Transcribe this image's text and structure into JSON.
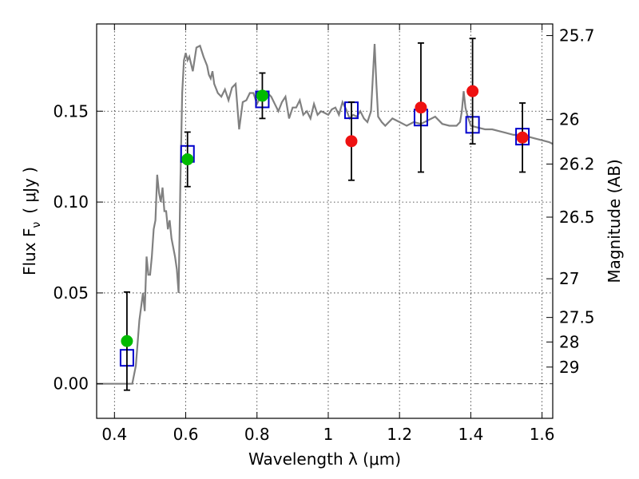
{
  "chart_data": {
    "type": "scatter",
    "xlabel": "Wavelength  λ (μm)",
    "ylabel": "Flux  F",
    "ylabel_sub": "ν",
    "ylabel_unit": "( μJy )",
    "right_ylabel": "Magnitude (AB)",
    "xlim": [
      0.35,
      1.63
    ],
    "ylim": [
      -0.019,
      0.198
    ],
    "x_ticks": [
      0.4,
      0.6,
      0.8,
      1.0,
      1.2,
      1.4,
      1.6
    ],
    "x_tick_labels": [
      "0.4",
      "0.6",
      "0.8",
      "1",
      "1.2",
      "1.4",
      "1.6"
    ],
    "y_ticks": [
      0.0,
      0.05,
      0.1,
      0.15
    ],
    "y_tick_labels": [
      "0.00",
      "0.05",
      "0.10",
      "0.15"
    ],
    "right_ticks": [
      {
        "label": "25.7",
        "flux": 0.1916
      },
      {
        "label": "26",
        "flux": 0.1454
      },
      {
        "label": "26.2",
        "flux": 0.1209
      },
      {
        "label": "26.5",
        "flux": 0.0917
      },
      {
        "label": "27",
        "flux": 0.0578
      },
      {
        "label": "27.5",
        "flux": 0.0365
      },
      {
        "label": "28",
        "flux": 0.023
      },
      {
        "label": "29",
        "flux": 0.0092
      }
    ],
    "grid": true,
    "zero_line": true,
    "colors": {
      "model": "#808080",
      "model_photometry": "#0000cc",
      "optical": "#00bb00",
      "nir": "#ee1111",
      "errorbar": "#000000"
    },
    "model_spectrum": {
      "x": [
        0.35,
        0.38,
        0.4,
        0.42,
        0.44,
        0.45,
        0.46,
        0.47,
        0.48,
        0.485,
        0.49,
        0.495,
        0.5,
        0.505,
        0.51,
        0.515,
        0.52,
        0.525,
        0.53,
        0.535,
        0.54,
        0.545,
        0.55,
        0.555,
        0.56,
        0.565,
        0.57,
        0.575,
        0.58,
        0.585,
        0.59,
        0.595,
        0.6,
        0.605,
        0.61,
        0.62,
        0.63,
        0.64,
        0.65,
        0.66,
        0.665,
        0.67,
        0.675,
        0.68,
        0.69,
        0.7,
        0.71,
        0.72,
        0.73,
        0.74,
        0.75,
        0.76,
        0.77,
        0.78,
        0.79,
        0.8,
        0.81,
        0.82,
        0.83,
        0.84,
        0.85,
        0.86,
        0.87,
        0.88,
        0.89,
        0.9,
        0.91,
        0.92,
        0.93,
        0.94,
        0.95,
        0.96,
        0.97,
        0.98,
        0.99,
        1.0,
        1.01,
        1.02,
        1.03,
        1.04,
        1.05,
        1.06,
        1.07,
        1.08,
        1.09,
        1.1,
        1.11,
        1.12,
        1.125,
        1.13,
        1.135,
        1.14,
        1.15,
        1.16,
        1.18,
        1.2,
        1.22,
        1.24,
        1.26,
        1.28,
        1.3,
        1.32,
        1.34,
        1.36,
        1.37,
        1.375,
        1.38,
        1.385,
        1.39,
        1.4,
        1.42,
        1.44,
        1.46,
        1.48,
        1.5,
        1.52,
        1.54,
        1.56,
        1.58,
        1.6,
        1.62,
        1.63
      ],
      "y": [
        0.0,
        0.0,
        0.0,
        0.0,
        0.0,
        0.0,
        0.01,
        0.035,
        0.05,
        0.04,
        0.07,
        0.06,
        0.06,
        0.07,
        0.085,
        0.09,
        0.115,
        0.105,
        0.1,
        0.108,
        0.095,
        0.095,
        0.085,
        0.09,
        0.08,
        0.075,
        0.07,
        0.063,
        0.05,
        0.11,
        0.16,
        0.178,
        0.182,
        0.178,
        0.18,
        0.172,
        0.185,
        0.186,
        0.18,
        0.175,
        0.17,
        0.168,
        0.172,
        0.165,
        0.16,
        0.158,
        0.162,
        0.156,
        0.163,
        0.165,
        0.14,
        0.155,
        0.156,
        0.16,
        0.16,
        0.154,
        0.158,
        0.156,
        0.16,
        0.158,
        0.154,
        0.15,
        0.155,
        0.158,
        0.146,
        0.152,
        0.152,
        0.156,
        0.148,
        0.15,
        0.146,
        0.154,
        0.148,
        0.15,
        0.149,
        0.148,
        0.151,
        0.152,
        0.148,
        0.155,
        0.151,
        0.146,
        0.148,
        0.147,
        0.15,
        0.146,
        0.144,
        0.15,
        0.168,
        0.187,
        0.165,
        0.147,
        0.144,
        0.142,
        0.146,
        0.144,
        0.142,
        0.144,
        0.143,
        0.145,
        0.147,
        0.143,
        0.142,
        0.142,
        0.144,
        0.15,
        0.161,
        0.152,
        0.148,
        0.142,
        0.141,
        0.14,
        0.14,
        0.139,
        0.138,
        0.137,
        0.137,
        0.136,
        0.135,
        0.134,
        0.133,
        0.132
      ]
    },
    "series": [
      {
        "role": "model_photometry",
        "marker": "open-square",
        "x": [
          0.435,
          0.605,
          0.815,
          1.065,
          1.26,
          1.405,
          1.545
        ],
        "y": [
          0.0143,
          0.1265,
          0.1565,
          0.1505,
          0.1465,
          0.1425,
          0.136
        ]
      },
      {
        "role": "observed_optical",
        "marker": "filled-circle",
        "x": [
          0.435,
          0.605,
          0.815
        ],
        "y": [
          0.0235,
          0.1235,
          0.1585
        ],
        "yerr": [
          0.027,
          0.015,
          0.0125
        ]
      },
      {
        "role": "observed_nir",
        "marker": "filled-circle",
        "x": [
          1.065,
          1.26,
          1.405,
          1.545
        ],
        "y": [
          0.1335,
          0.152,
          0.161,
          0.1355
        ],
        "yerr": [
          0.0215,
          0.0355,
          0.029,
          0.019
        ]
      }
    ]
  }
}
